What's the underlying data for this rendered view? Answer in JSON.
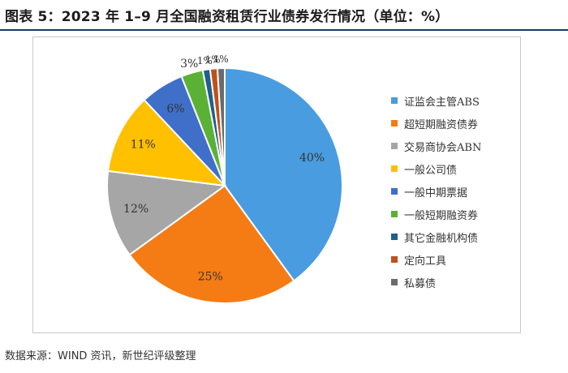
{
  "title": "图表 5：2023 年 1–9 月全国融资租赁行业债券发行情况（单位：%）",
  "source": "数据来源：WIND 资讯，新世纪评级整理",
  "chart_data": {
    "type": "pie",
    "unit": "%",
    "start_angle_deg": 0,
    "direction": "clockwise",
    "legend_position": "right",
    "slices": [
      {
        "name": "证监会主管ABS",
        "value": 40,
        "label": "40%",
        "color": "#4a9ce0"
      },
      {
        "name": "超短期融资债券",
        "value": 25,
        "label": "25%",
        "color": "#f57c14"
      },
      {
        "name": "交易商协会ABN",
        "value": 12,
        "label": "12%",
        "color": "#a6a6a6"
      },
      {
        "name": "一般公司债",
        "value": 11,
        "label": "11%",
        "color": "#ffc000"
      },
      {
        "name": "一般中期票据",
        "value": 6,
        "label": "6%",
        "color": "#3f6fc9"
      },
      {
        "name": "一般短期融资券",
        "value": 3,
        "label": "3%",
        "color": "#5bb135"
      },
      {
        "name": "其它金融机构债",
        "value": 1,
        "label": "1%",
        "color": "#1f5f8b"
      },
      {
        "name": "定向工具",
        "value": 1,
        "label": "1%",
        "color": "#c0501a"
      },
      {
        "name": "私募债",
        "value": 1,
        "label": "1%",
        "color": "#6b6b6b"
      }
    ]
  }
}
